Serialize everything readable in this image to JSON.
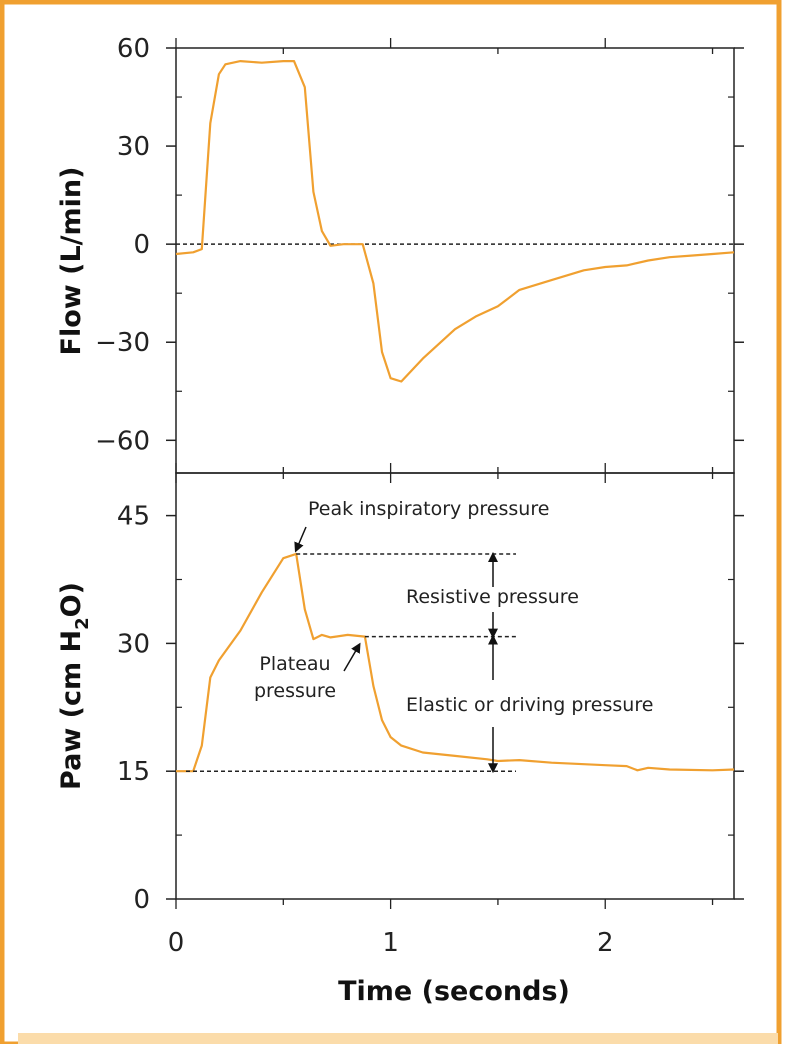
{
  "colors": {
    "border": "#f0a030",
    "bottom_band": "#fbdcaa",
    "series": "#f0a030",
    "axis": "#222222"
  },
  "chart_data": [
    {
      "type": "line",
      "panel": "top",
      "title": "",
      "xlabel": "",
      "ylabel": "Flow (L/min)",
      "ylim": [
        -70,
        60
      ],
      "xlim": [
        0,
        2.6
      ],
      "yticks": [
        60,
        30,
        0,
        -30,
        -60
      ],
      "ytick_labels": [
        "60",
        "30",
        "0",
        "−30",
        "−60"
      ],
      "reference_line": 0,
      "grid": false,
      "series": [
        {
          "x": [
            0,
            0.08,
            0.12,
            0.16,
            0.2,
            0.23,
            0.3,
            0.4,
            0.5,
            0.55,
            0.6,
            0.64,
            0.68,
            0.72,
            0.78,
            0.87,
            0.92,
            0.96,
            1.0,
            1.05,
            1.15,
            1.3,
            1.4,
            1.5,
            1.6,
            1.75,
            1.9,
            2.0,
            2.1,
            2.2,
            2.3,
            2.4,
            2.5,
            2.6
          ],
          "y": [
            -3,
            -2.5,
            -1.5,
            37,
            52,
            55,
            56,
            55.5,
            56,
            56,
            48,
            16,
            4,
            -0.5,
            0,
            0,
            -12,
            -33,
            -41,
            -42,
            -35,
            -26,
            -22,
            -19,
            -14,
            -11,
            -8,
            -7,
            -6.5,
            -5,
            -4,
            -3.5,
            -3,
            -2.5
          ]
        }
      ]
    },
    {
      "type": "line",
      "panel": "bottom",
      "title": "",
      "xlabel": "Time (seconds)",
      "ylabel": "Paw (cm H",
      "ylabel_sub": "2",
      "ylabel_end": "O)",
      "ylim": [
        0,
        50
      ],
      "xlim": [
        0,
        2.6
      ],
      "yticks": [
        45,
        30,
        15,
        0
      ],
      "ytick_labels": [
        "45",
        "30",
        "15",
        "0"
      ],
      "xticks": [
        0,
        1,
        2
      ],
      "xtick_labels": [
        "0",
        "1",
        "2"
      ],
      "grid": false,
      "series": [
        {
          "x": [
            0,
            0.08,
            0.12,
            0.16,
            0.2,
            0.3,
            0.4,
            0.5,
            0.56,
            0.6,
            0.64,
            0.68,
            0.72,
            0.8,
            0.88,
            0.92,
            0.96,
            1.0,
            1.05,
            1.15,
            1.3,
            1.45,
            1.5,
            1.6,
            1.75,
            2.0,
            2.1,
            2.15,
            2.2,
            2.3,
            2.5,
            2.6
          ],
          "y": [
            15,
            15,
            18,
            26,
            28,
            31.5,
            36,
            40,
            40.5,
            34,
            30.5,
            31,
            30.7,
            31,
            30.8,
            25,
            21,
            19,
            18,
            17.2,
            16.8,
            16.4,
            16.2,
            16.3,
            16,
            15.7,
            15.6,
            15.1,
            15.4,
            15.2,
            15.1,
            15.2
          ]
        }
      ],
      "annotations": {
        "peak": "Peak inspiratory pressure",
        "plateau_line1": "Plateau",
        "plateau_line2": "pressure",
        "resistive": "Resistive pressure",
        "elastic": "Elastic or driving pressure"
      }
    }
  ]
}
